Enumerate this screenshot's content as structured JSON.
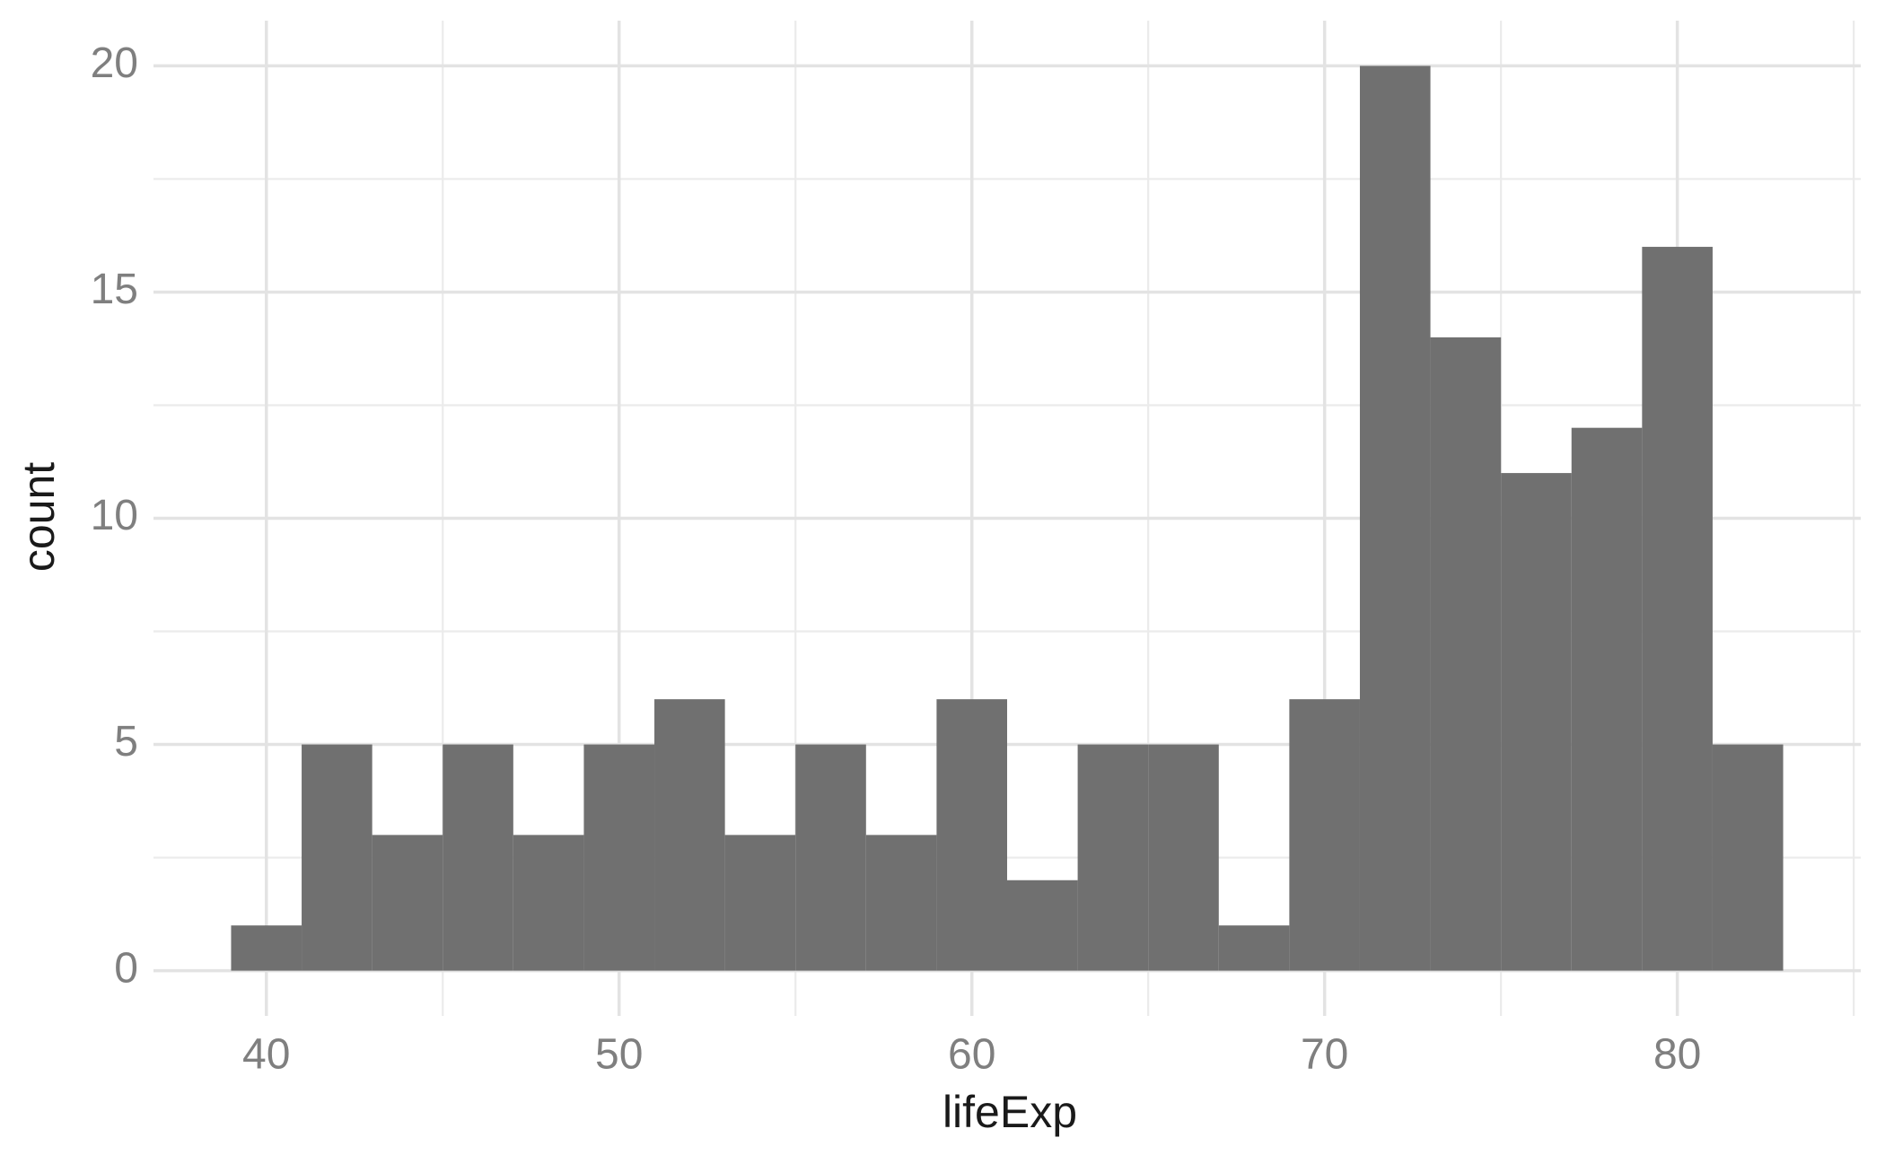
{
  "chart_data": {
    "type": "histogram",
    "x_label": "lifeExp",
    "y_label": "count",
    "bins": [
      39,
      41,
      43,
      45,
      47,
      49,
      51,
      53,
      55,
      57,
      59,
      61,
      63,
      65,
      67,
      69,
      71,
      73,
      75,
      77,
      79,
      81,
      83
    ],
    "values": [
      1,
      5,
      3,
      5,
      3,
      5,
      6,
      3,
      5,
      3,
      6,
      2,
      5,
      5,
      1,
      6,
      20,
      14,
      11,
      12,
      16,
      5
    ],
    "color": "#707070",
    "xlim": [
      36.8,
      85.2
    ],
    "ylim": [
      -1,
      21
    ],
    "xticks": [
      40,
      50,
      60,
      70,
      80
    ],
    "yticks": [
      0,
      5,
      10,
      15,
      20
    ],
    "xminorticks": [
      45,
      55,
      65,
      75,
      85
    ],
    "yminorticks": [
      2.5,
      7.5,
      12.5,
      17.5
    ],
    "grid": true
  }
}
